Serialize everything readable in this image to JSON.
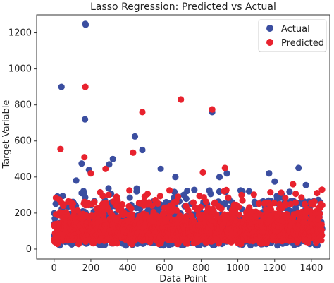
{
  "chart_data": {
    "type": "scatter",
    "title": "Lasso Regression: Predicted vs Actual",
    "xlabel": "Data Point",
    "ylabel": "Target Variable",
    "xlim": [
      -95,
      1500
    ],
    "ylim": [
      -55,
      1300
    ],
    "xticks": [
      0,
      200,
      400,
      600,
      800,
      1000,
      1200,
      1400
    ],
    "yticks": [
      0,
      200,
      400,
      600,
      800,
      1000,
      1200
    ],
    "grid": false,
    "legend_position": "top-right",
    "n_points": 1460,
    "series": [
      {
        "name": "Actual",
        "color": "#3b4ea0",
        "outliers": [
          {
            "x": 40,
            "y": 900
          },
          {
            "x": 170,
            "y": 1250
          },
          {
            "x": 172,
            "y": 1245
          },
          {
            "x": 168,
            "y": 720
          },
          {
            "x": 190,
            "y": 440
          },
          {
            "x": 150,
            "y": 475
          },
          {
            "x": 120,
            "y": 380
          },
          {
            "x": 300,
            "y": 470
          },
          {
            "x": 320,
            "y": 500
          },
          {
            "x": 440,
            "y": 625
          },
          {
            "x": 480,
            "y": 550
          },
          {
            "x": 580,
            "y": 445
          },
          {
            "x": 660,
            "y": 400
          },
          {
            "x": 860,
            "y": 760
          },
          {
            "x": 900,
            "y": 400
          },
          {
            "x": 940,
            "y": 420
          },
          {
            "x": 1170,
            "y": 420
          },
          {
            "x": 1200,
            "y": 375
          },
          {
            "x": 1330,
            "y": 450
          },
          {
            "x": 1370,
            "y": 355
          }
        ]
      },
      {
        "name": "Predicted",
        "color": "#e8222e",
        "outliers": [
          {
            "x": 35,
            "y": 555
          },
          {
            "x": 170,
            "y": 900
          },
          {
            "x": 165,
            "y": 510
          },
          {
            "x": 200,
            "y": 420
          },
          {
            "x": 280,
            "y": 445
          },
          {
            "x": 430,
            "y": 535
          },
          {
            "x": 480,
            "y": 760
          },
          {
            "x": 690,
            "y": 830
          },
          {
            "x": 860,
            "y": 775
          },
          {
            "x": 930,
            "y": 450
          },
          {
            "x": 810,
            "y": 425
          },
          {
            "x": 1020,
            "y": 300
          },
          {
            "x": 1300,
            "y": 360
          }
        ]
      }
    ]
  }
}
